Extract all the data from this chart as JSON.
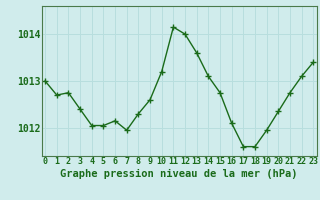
{
  "x": [
    0,
    1,
    2,
    3,
    4,
    5,
    6,
    7,
    8,
    9,
    10,
    11,
    12,
    13,
    14,
    15,
    16,
    17,
    18,
    19,
    20,
    21,
    22,
    23
  ],
  "y": [
    1013.0,
    1012.7,
    1012.75,
    1012.4,
    1012.05,
    1012.05,
    1012.15,
    1011.95,
    1012.3,
    1012.6,
    1013.2,
    1014.15,
    1014.0,
    1013.6,
    1013.1,
    1012.75,
    1012.1,
    1011.6,
    1011.6,
    1011.95,
    1012.35,
    1012.75,
    1013.1,
    1013.4
  ],
  "ylim": [
    1011.4,
    1014.6
  ],
  "yticks": [
    1012,
    1013,
    1014
  ],
  "xticks": [
    0,
    1,
    2,
    3,
    4,
    5,
    6,
    7,
    8,
    9,
    10,
    11,
    12,
    13,
    14,
    15,
    16,
    17,
    18,
    19,
    20,
    21,
    22,
    23
  ],
  "line_color": "#1a6b1a",
  "marker_color": "#1a6b1a",
  "grid_color": "#b8dede",
  "bg_color": "#d0ecec",
  "xlabel": "Graphe pression niveau de la mer (hPa)",
  "xlabel_color": "#1a6b1a",
  "xlabel_fontsize": 7.5,
  "tick_color": "#1a6b1a",
  "ytick_fontsize": 7,
  "xtick_fontsize": 6,
  "spine_color": "#4a7a4a",
  "line_width": 1.0,
  "marker_size": 4
}
